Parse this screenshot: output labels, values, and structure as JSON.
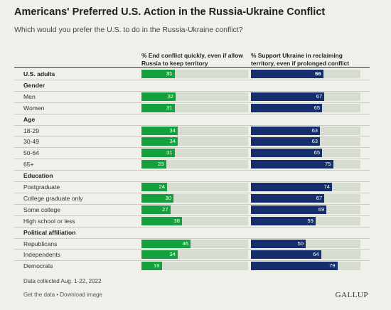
{
  "header": {
    "title": "Americans' Preferred U.S. Action in the Russia-Ukraine Conflict",
    "subtitle": "Which would you prefer the U.S. to do in the Russia-Ukraine conflict?"
  },
  "chart_data": {
    "type": "bar",
    "title": "Americans' Preferred U.S. Action in the Russia-Ukraine Conflict",
    "subtitle": "Which would you prefer the U.S. to do in the Russia-Ukraine conflict?",
    "xlim": [
      0,
      100
    ],
    "series": [
      {
        "name": "% End conflict quickly, even if allow Russia to keep territory",
        "color": "#14a03c"
      },
      {
        "name": "% Support Ukraine in reclaiming territory, even if prolonged conflict",
        "color": "#162e6b"
      }
    ],
    "rows": [
      {
        "kind": "total",
        "label": "U.S. adults",
        "values": [
          31,
          66
        ]
      },
      {
        "kind": "group",
        "label": "Gender"
      },
      {
        "kind": "item",
        "label": "Men",
        "values": [
          32,
          67
        ]
      },
      {
        "kind": "item",
        "label": "Women",
        "values": [
          31,
          65
        ]
      },
      {
        "kind": "group",
        "label": "Age"
      },
      {
        "kind": "item",
        "label": "18-29",
        "values": [
          34,
          63
        ]
      },
      {
        "kind": "item",
        "label": "30-49",
        "values": [
          34,
          63
        ]
      },
      {
        "kind": "item",
        "label": "50-64",
        "values": [
          31,
          65
        ]
      },
      {
        "kind": "item",
        "label": "65+",
        "values": [
          23,
          75
        ]
      },
      {
        "kind": "group",
        "label": "Education"
      },
      {
        "kind": "item",
        "label": "Postgraduate",
        "values": [
          24,
          74
        ]
      },
      {
        "kind": "item",
        "label": "College graduate only",
        "values": [
          30,
          67
        ]
      },
      {
        "kind": "item",
        "label": "Some college",
        "values": [
          27,
          69
        ]
      },
      {
        "kind": "item",
        "label": "High school or less",
        "values": [
          38,
          59
        ]
      },
      {
        "kind": "group",
        "label": "Political affiliation"
      },
      {
        "kind": "item",
        "label": "Republicans",
        "values": [
          46,
          50
        ]
      },
      {
        "kind": "item",
        "label": "Independents",
        "values": [
          34,
          64
        ]
      },
      {
        "kind": "item",
        "label": "Democrats",
        "values": [
          19,
          79
        ]
      }
    ]
  },
  "columns": {
    "left": "% End conflict quickly, even if allow Russia to keep territory",
    "right": "% Support Ukraine in reclaiming territory, even if prolonged conflict"
  },
  "footer": {
    "note": "Data collected Aug. 1-22, 2022",
    "get_data": "Get the data",
    "sep": " • ",
    "download": "Download image",
    "brand": "GALLUP"
  }
}
